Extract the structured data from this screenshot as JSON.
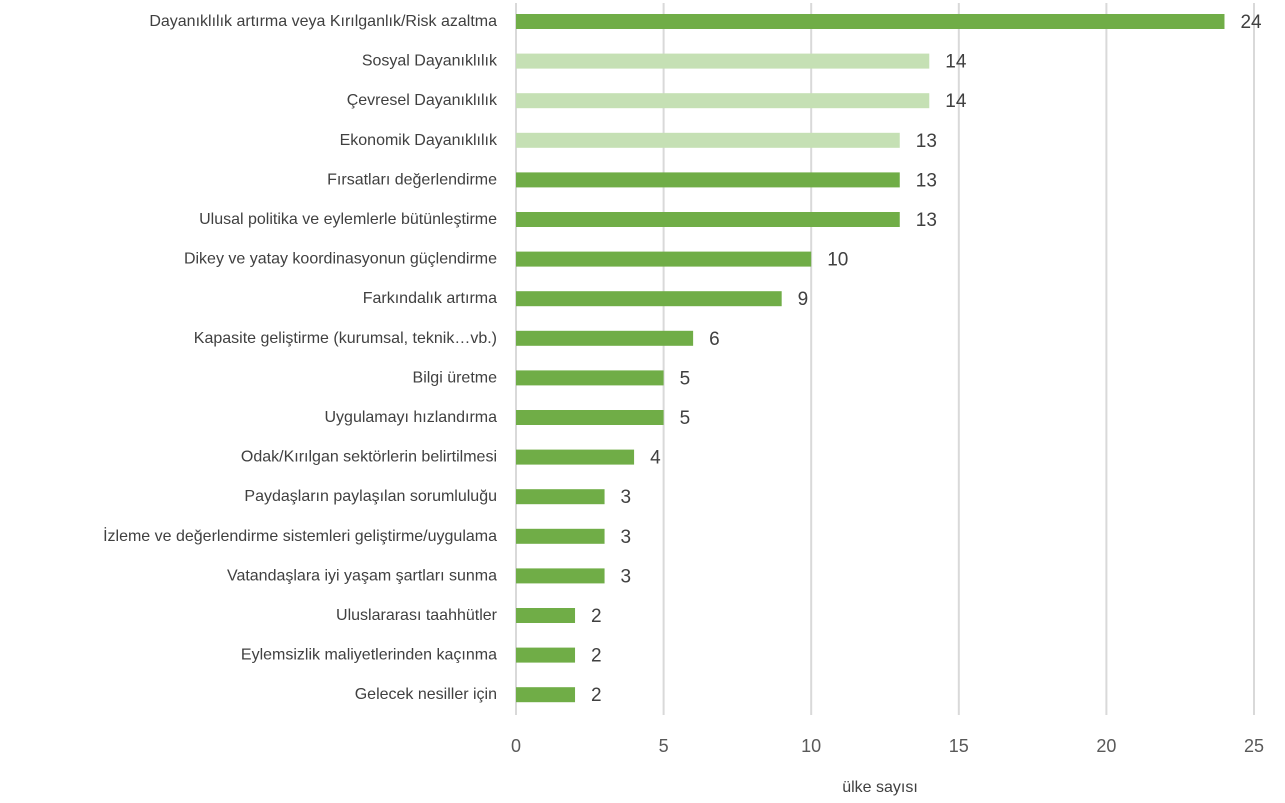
{
  "chart_data": {
    "type": "bar",
    "orientation": "horizontal",
    "categories": [
      "Dayanıklılık artırma veya Kırılganlık/Risk azaltma",
      "Sosyal Dayanıklılık",
      "Çevresel Dayanıklılık",
      "Ekonomik Dayanıklılık",
      "Fırsatları değerlendirme",
      "Ulusal politika ve eylemlerle bütünleştirme",
      "Dikey ve yatay koordinasyonun güçlendirme",
      "Farkındalık artırma",
      "Kapasite geliştirme (kurumsal, teknik…vb.)",
      "Bilgi üretme",
      "Uygulamayı hızlandırma",
      "Odak/Kırılgan sektörlerin belirtilmesi",
      "Paydaşların paylaşılan sorumluluğu",
      "İzleme ve değerlendirme sistemleri geliştirme/uygulama",
      "Vatandaşlara iyi yaşam şartları sunma",
      "Uluslararası taahhütler",
      "Eylemsizlik maliyetlerinden kaçınma",
      "Gelecek nesiller için"
    ],
    "values": [
      24,
      14,
      14,
      13,
      13,
      13,
      10,
      9,
      6,
      5,
      5,
      4,
      3,
      3,
      3,
      2,
      2,
      2
    ],
    "bar_colors": [
      "#70ad47",
      "#c5e0b4",
      "#c5e0b4",
      "#c5e0b4",
      "#70ad47",
      "#70ad47",
      "#70ad47",
      "#70ad47",
      "#70ad47",
      "#70ad47",
      "#70ad47",
      "#70ad47",
      "#70ad47",
      "#70ad47",
      "#70ad47",
      "#70ad47",
      "#70ad47",
      "#70ad47"
    ],
    "title": "",
    "xlabel": "ülke sayısı",
    "ylabel": "",
    "xlim": [
      0,
      25
    ],
    "xticks": [
      0,
      5,
      10,
      15,
      20,
      25
    ],
    "grid": "vertical",
    "legend": "none"
  }
}
